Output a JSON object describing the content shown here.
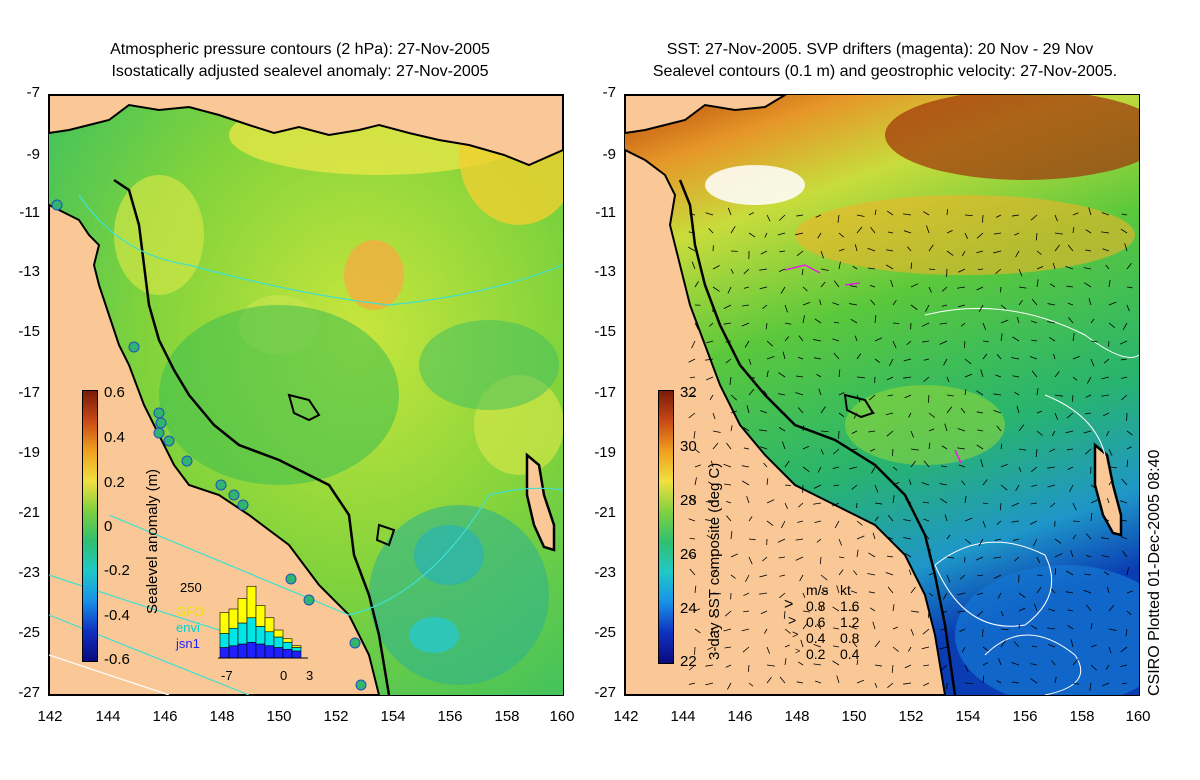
{
  "left_panel": {
    "title_line1": "Atmospheric pressure contours (2 hPa): 27-Nov-2005",
    "title_line2": "Isostatically adjusted sealevel anomaly: 27-Nov-2005",
    "y_ticks": [
      "-7",
      "-9",
      "-11",
      "-13",
      "-15",
      "-17",
      "-19",
      "-21",
      "-23",
      "-25",
      "-27"
    ],
    "x_ticks": [
      "142",
      "144",
      "146",
      "148",
      "150",
      "152",
      "154",
      "156",
      "158",
      "160"
    ],
    "colorbar": {
      "label": "Sealevel anomaly (m)",
      "ticks": [
        "0.6",
        "0.4",
        "0.2",
        "0",
        "-0.2",
        "-0.4",
        "-0.6"
      ],
      "range": [
        -0.6,
        0.6
      ]
    },
    "histogram": {
      "ymax_label": "250",
      "x_ticks": [
        "-7",
        "0",
        "3"
      ],
      "legend": [
        {
          "name": "GFO",
          "color": "#ffff00"
        },
        {
          "name": "envi",
          "color": "#00e5e5"
        },
        {
          "name": "jsn1",
          "color": "#2020ff"
        }
      ],
      "bars_gfo": [
        60,
        55,
        70,
        90,
        60,
        40,
        20,
        10,
        5
      ],
      "bars_envi": [
        40,
        50,
        60,
        70,
        50,
        40,
        30,
        20,
        10
      ],
      "bars_jsn1": [
        30,
        35,
        40,
        45,
        40,
        35,
        30,
        25,
        20
      ]
    }
  },
  "right_panel": {
    "title_line1": "SST: 27-Nov-2005. SVP drifters (magenta): 20 Nov - 29 Nov",
    "title_line2": "Sealevel contours (0.1 m) and geostrophic velocity: 27-Nov-2005.",
    "y_ticks": [
      "-7",
      "-9",
      "-11",
      "-13",
      "-15",
      "-17",
      "-19",
      "-21",
      "-23",
      "-25",
      "-27"
    ],
    "x_ticks": [
      "142",
      "144",
      "146",
      "148",
      "150",
      "152",
      "154",
      "156",
      "158",
      "160"
    ],
    "colorbar": {
      "label": "3-day SST composite (deg C)",
      "ticks": [
        "32",
        "30",
        "28",
        "26",
        "24",
        "22"
      ],
      "range": [
        22,
        32
      ]
    },
    "velocity_legend": {
      "header_ms": "m/s",
      "header_kt": "kt",
      "rows": [
        {
          "ms": "0.8",
          "kt": "1.6"
        },
        {
          "ms": "0.6",
          "kt": "1.2"
        },
        {
          "ms": "0.4",
          "kt": "0.8"
        },
        {
          "ms": "0.2",
          "kt": "0.4"
        }
      ]
    },
    "credit": "CSIRO Plotted 01-Dec-2005 08:40"
  },
  "colors": {
    "land": "#fac896",
    "coast": "#000000",
    "contour": "#40e0d0"
  }
}
